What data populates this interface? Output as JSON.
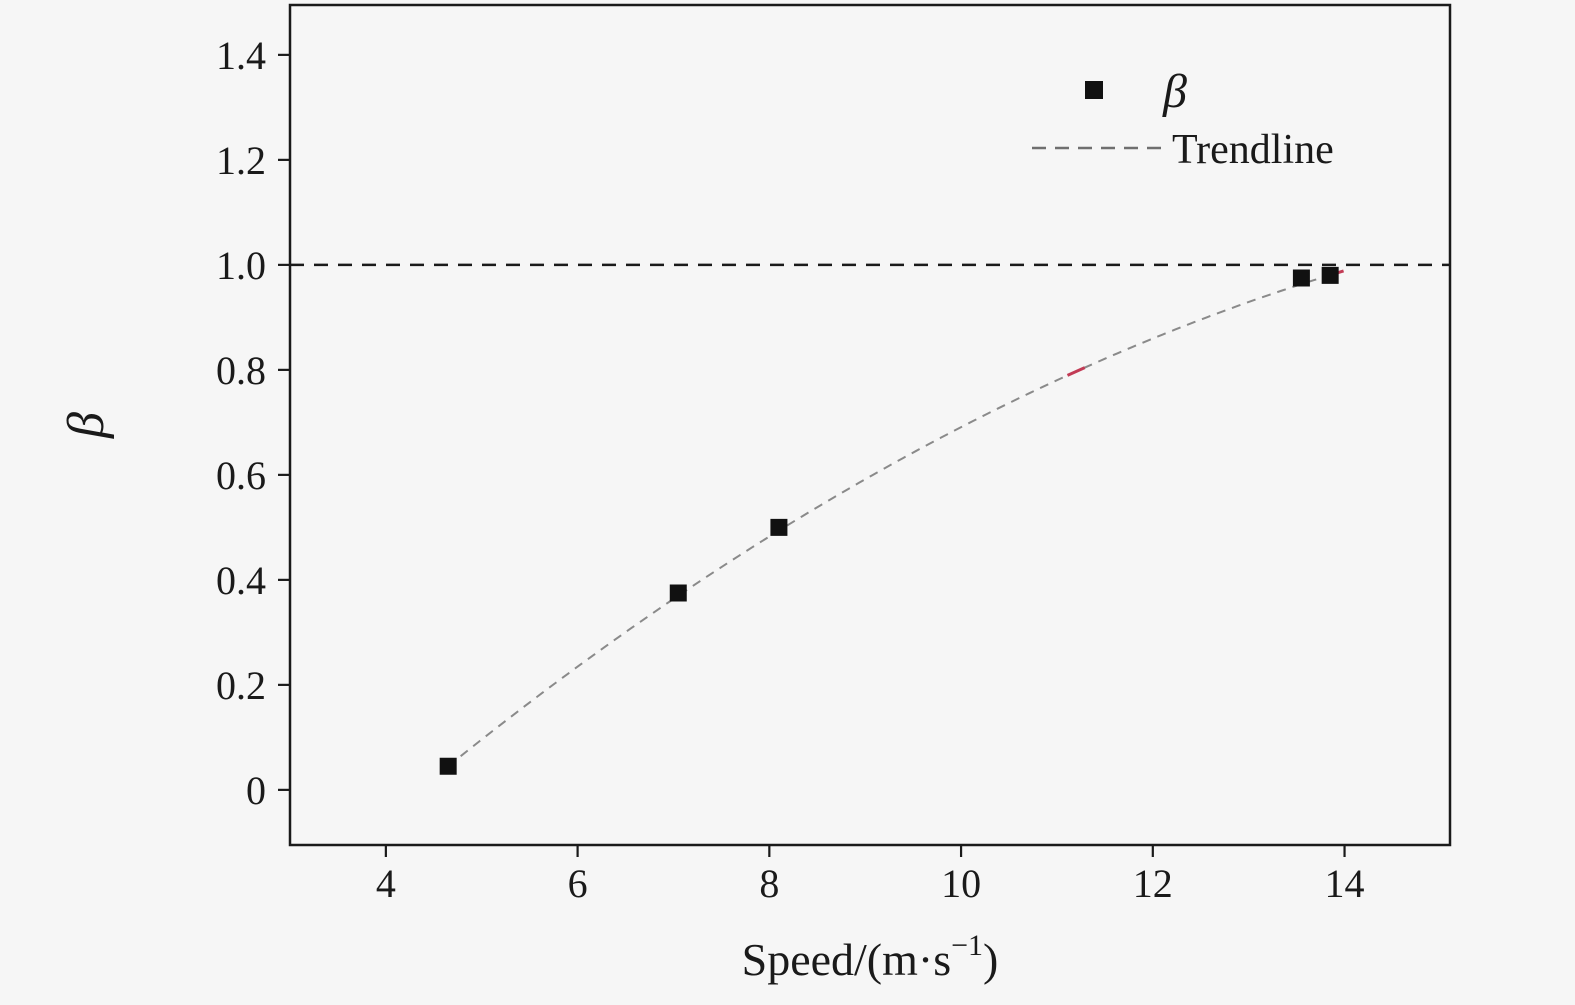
{
  "page": {
    "background": "#f6f6f6"
  },
  "chart_data": {
    "type": "scatter",
    "title": "",
    "xlabel": "Speed/(m·s⁻¹)",
    "xlabel_parts": {
      "main": "Speed/(m·s",
      "sup": "−1",
      "end": ")"
    },
    "ylabel": "β",
    "xlim": [
      3.0,
      15.1
    ],
    "ylim": [
      -0.105,
      1.495
    ],
    "x_ticks": [
      4,
      6,
      8,
      10,
      12,
      14
    ],
    "y_ticks": [
      0,
      0.2,
      0.4,
      0.6,
      0.8,
      1.0,
      1.2,
      1.4
    ],
    "y_tick_labels": [
      "0",
      "0.2",
      "0.4",
      "0.6",
      "0.8",
      "1.0",
      "1.2",
      "1.4"
    ],
    "grid": false,
    "legend": {
      "position": "upper right",
      "entries": [
        {
          "label": "β",
          "type": "square-marker",
          "italic": true
        },
        {
          "label": "Trendline",
          "type": "dashed-line",
          "italic": false
        }
      ]
    },
    "series": [
      {
        "name": "β",
        "type": "scatter",
        "marker": "square",
        "color": "#111111",
        "points": [
          [
            4.65,
            0.045
          ],
          [
            7.05,
            0.375
          ],
          [
            8.1,
            0.5
          ],
          [
            13.55,
            0.975
          ],
          [
            13.85,
            0.98
          ]
        ]
      },
      {
        "name": "Trendline",
        "type": "dashed-curve",
        "color": "#8a8a8a",
        "poly": [
          -0.746,
          0.1931,
          -0.004941
        ],
        "x_range": [
          4.65,
          13.88
        ]
      }
    ],
    "reference_line": {
      "y": 1.0,
      "style": "dashed",
      "color": "#1a1a1a"
    },
    "red_marks": [
      [
        11.2,
        0.795
      ],
      [
        13.9,
        0.985
      ]
    ],
    "red_color": "#c23b55",
    "axis_color": "#1a1a1a"
  }
}
